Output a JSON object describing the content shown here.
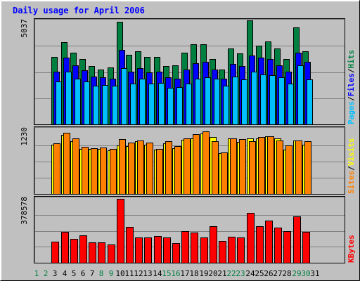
{
  "chart_data": {
    "type": "bar",
    "title": "Daily usage for April 2006",
    "categories": [
      "1",
      "2",
      "3",
      "4",
      "5",
      "6",
      "7",
      "8",
      "9",
      "10",
      "11",
      "12",
      "13",
      "14",
      "15",
      "16",
      "17",
      "18",
      "19",
      "20",
      "21",
      "22",
      "23",
      "24",
      "25",
      "26",
      "27",
      "28",
      "29",
      "30",
      "31"
    ],
    "weekend_days": [
      "1",
      "2",
      "8",
      "9",
      "15",
      "16",
      "22",
      "23",
      "29",
      "30"
    ],
    "panels": [
      {
        "key": "hits_files_pages",
        "ymax": 5037,
        "ytick_label": "5037",
        "legend": [
          "Pages",
          "/",
          "Files",
          "/",
          "Hits"
        ],
        "series": [
          {
            "name": "Hits",
            "color": "#008040",
            "values": [
              null,
              null,
              3250,
              3950,
              3450,
              3150,
              2800,
              2650,
              2750,
              4950,
              3350,
              3500,
              3250,
              3250,
              2800,
              2850,
              3450,
              3850,
              3850,
              3150,
              2650,
              3650,
              3400,
              5000,
              3800,
              4000,
              3650,
              3150,
              4650,
              3500,
              null
            ]
          },
          {
            "name": "Files",
            "color": "#0000ff",
            "values": [
              null,
              null,
              2550,
              3200,
              2850,
              2600,
              2300,
              2250,
              2200,
              3600,
              2550,
              2700,
              2500,
              2550,
              2250,
              2200,
              2650,
              2950,
              3000,
              2650,
              2200,
              2900,
              2800,
              3300,
              3200,
              3150,
              2850,
              2550,
              3450,
              3000,
              null
            ]
          },
          {
            "name": "Pages",
            "color": "#00c0ff",
            "values": [
              null,
              null,
              2050,
              2550,
              2200,
              2050,
              1850,
              1900,
              1850,
              2700,
              1950,
              2200,
              1950,
              2000,
              1750,
              1800,
              1950,
              2200,
              2250,
              2200,
              1850,
              2300,
              2150,
              2550,
              2400,
              2350,
              2250,
              1950,
              2850,
              2150,
              null
            ]
          }
        ]
      },
      {
        "key": "sites_visits",
        "ymax": 1230,
        "ytick_label": "1230",
        "legend": [
          "Sites",
          "/",
          "Visits"
        ],
        "series": [
          {
            "name": "Visits",
            "color": "#ffff00",
            "values": [
              null,
              null,
              940,
              1120,
              1000,
              860,
              860,
              860,
              830,
              920,
              910,
              1000,
              930,
              840,
              960,
              870,
              1030,
              1050,
              1150,
              1080,
              780,
              1050,
              990,
              1060,
              1060,
              1090,
              1060,
              840,
              1020,
              930,
              null
            ]
          },
          {
            "name": "Sites",
            "color": "#ff8000",
            "values": [
              null,
              null,
              960,
              1160,
              1060,
              890,
              870,
              880,
              860,
              1040,
              980,
              1020,
              970,
              860,
              1000,
              910,
              1050,
              1130,
              1190,
              1000,
              790,
              1050,
              1040,
              1000,
              1080,
              1090,
              1010,
              920,
              1010,
              1000,
              null
            ]
          }
        ]
      },
      {
        "key": "kbytes",
        "ymax": 378578,
        "ytick_label": "378578",
        "legend": [
          "KBytes"
        ],
        "series": [
          {
            "name": "KBytes",
            "color": "#ff0000",
            "values": [
              null,
              null,
              125000,
              185000,
              141000,
              162000,
              119000,
              119000,
              110000,
              378000,
              213000,
              150000,
              148000,
              158000,
              148000,
              118000,
              187000,
              180000,
              151000,
              215000,
              127000,
              152000,
              148000,
              294000,
              215000,
              250000,
              208000,
              189000,
              276000,
              185000,
              null
            ]
          }
        ]
      }
    ],
    "colors": {
      "background": "#c0c0c0",
      "title": "#0000ff",
      "gridline": "#808080",
      "day_text": "#000000",
      "weekend_text": "#008040"
    }
  }
}
